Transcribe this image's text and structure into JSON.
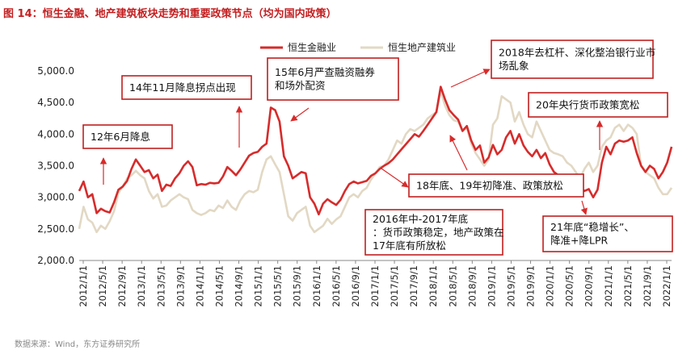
{
  "figure": {
    "title": "图 14：恒生金融、地产建筑板块走势和重要政策节点（均为国内政策）",
    "source": "数据来源：Wind，东方证券研究所"
  },
  "colors": {
    "finance": "#d72b2b",
    "realestate": "#e2d8c4",
    "annotation_border": "#c01f1f",
    "arrow": "#d72b2b",
    "title": "#c41e20"
  },
  "chart_data": {
    "type": "line",
    "title": "图 14：恒生金融、地产建筑板块走势和重要政策节点（均为国内政策）",
    "xlabel": "",
    "ylabel": "",
    "ylim": [
      2000,
      5000
    ],
    "yticks": [
      "2,000.0",
      "2,500.0",
      "3,000.0",
      "3,500.0",
      "4,000.0",
      "4,500.0",
      "5,000.0"
    ],
    "ytick_values": [
      2000,
      2500,
      3000,
      3500,
      4000,
      4500,
      5000
    ],
    "xticks": [
      "2012/1/1",
      "2012/5/1",
      "2012/9/1",
      "2013/1/1",
      "2013/5/1",
      "2013/9/1",
      "2014/1/1",
      "2014/5/1",
      "2014/9/1",
      "2015/1/1",
      "2015/5/1",
      "2015/9/1",
      "2016/1/1",
      "2016/5/1",
      "2016/9/1",
      "2017/1/1",
      "2017/5/1",
      "2017/9/1",
      "2018/1/1",
      "2018/5/1",
      "2018/9/1",
      "2019/1/1",
      "2019/5/1",
      "2019/9/1",
      "2020/1/1",
      "2020/5/1",
      "2020/9/1",
      "2021/1/1",
      "2021/5/1",
      "2021/9/1",
      "2022/1/1"
    ],
    "grid": false,
    "legend_position": "top",
    "series": [
      {
        "name": "恒生金融业",
        "values": [
          3100,
          3250,
          3000,
          3050,
          2750,
          2820,
          2780,
          2760,
          2920,
          3120,
          3170,
          3260,
          3450,
          3600,
          3500,
          3400,
          3430,
          3300,
          3360,
          3100,
          3200,
          3180,
          3300,
          3380,
          3500,
          3570,
          3480,
          3190,
          3210,
          3200,
          3230,
          3220,
          3230,
          3330,
          3480,
          3420,
          3350,
          3440,
          3550,
          3660,
          3700,
          3720,
          3800,
          3850,
          4420,
          4380,
          4200,
          3650,
          3500,
          3300,
          3350,
          3400,
          3380,
          3000,
          2900,
          2730,
          2900,
          2970,
          2920,
          2880,
          2960,
          3100,
          3210,
          3250,
          3220,
          3240,
          3260,
          3340,
          3380,
          3450,
          3500,
          3540,
          3600,
          3680,
          3760,
          3840,
          3920,
          4000,
          3960,
          4050,
          4150,
          4250,
          4350,
          4750,
          4550,
          4380,
          4300,
          4230,
          4050,
          4130,
          3900,
          3750,
          3820,
          3550,
          3630,
          3830,
          3680,
          3750,
          3950,
          4050,
          3850,
          4000,
          3820,
          3720,
          3650,
          3750,
          3620,
          3700,
          3520,
          3400,
          3350,
          3200,
          3080,
          3200,
          3180,
          3150,
          3100,
          3130,
          3000,
          3120,
          3550,
          3800,
          3680,
          3850,
          3900,
          3880,
          3900,
          3950,
          3700,
          3500,
          3400,
          3500,
          3450,
          3300,
          3400,
          3550,
          3800
        ]
      },
      {
        "name": "恒生地产建筑业",
        "values": [
          2500,
          2850,
          2650,
          2600,
          2450,
          2550,
          2500,
          2620,
          2780,
          3070,
          3170,
          3300,
          3350,
          3420,
          3350,
          3300,
          3100,
          2980,
          3050,
          2850,
          2870,
          2950,
          3000,
          3050,
          3000,
          2970,
          2800,
          2750,
          2720,
          2750,
          2800,
          2780,
          2870,
          2830,
          2950,
          2850,
          2800,
          2950,
          3050,
          3100,
          3080,
          3120,
          3400,
          3600,
          3650,
          3520,
          3400,
          3050,
          2700,
          2630,
          2750,
          2800,
          2850,
          2550,
          2450,
          2500,
          2550,
          2660,
          2580,
          2650,
          2700,
          2850,
          3000,
          3050,
          3000,
          3100,
          3150,
          3280,
          3380,
          3480,
          3500,
          3600,
          3750,
          3900,
          3850,
          4000,
          4080,
          4050,
          4100,
          4150,
          4250,
          4300,
          4350,
          4680,
          4450,
          4300,
          4220,
          4200,
          4050,
          4100,
          3850,
          3700,
          3600,
          3500,
          3600,
          4150,
          4250,
          4600,
          4550,
          4500,
          4200,
          4350,
          4150,
          4000,
          3950,
          4200,
          4050,
          3900,
          3750,
          3700,
          3680,
          3650,
          3550,
          3500,
          3400,
          3300,
          3450,
          3550,
          3400,
          3500,
          3800,
          3900,
          3950,
          4100,
          4150,
          4050,
          4150,
          4100,
          4000,
          3500,
          3400,
          3350,
          3300,
          3150,
          3050,
          3050,
          3150
        ]
      }
    ],
    "annotations": [
      {
        "text": "12年6月降息"
      },
      {
        "text": "14年11月降息拐点出现"
      },
      {
        "text": "15年6月严查融资融券和场外配资"
      },
      {
        "text": "2018年去杠杆、深化整治银行业市场乱象"
      },
      {
        "text": "20年央行货币政策宽松"
      },
      {
        "text": "18年底、19年初降准、政策放松"
      },
      {
        "text": "2016年中-2017年底：货币政策稳定，地产政策在17年底有所放松"
      },
      {
        "text": "21年底“稳增长”、降准+降LPR"
      }
    ]
  }
}
